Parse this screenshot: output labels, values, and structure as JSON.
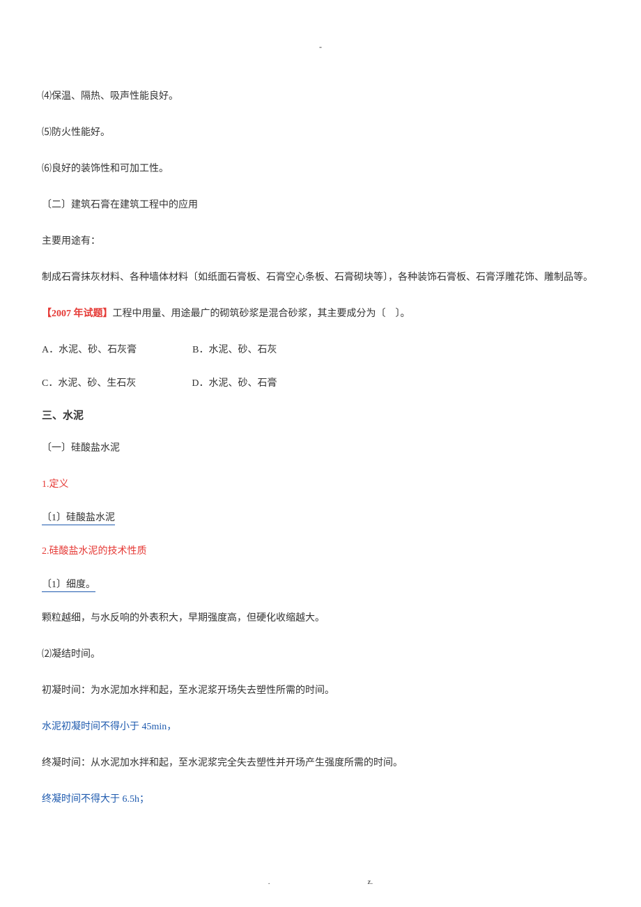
{
  "top": {
    "dash": "-"
  },
  "gypsum": {
    "prop4": "⑷保温、隔热、吸声性能良好。",
    "prop5": "⑸防火性能好。",
    "prop6": "⑹良好的装饰性和可加工性。",
    "sec2_title": "〔二〕建筑石膏在建筑工程中的应用",
    "uses_label": "主要用途有：",
    "uses_text": "制成石膏抹灰材料、各种墙体材料〔如纸面石膏板、石膏空心条板、石膏砌块等〕，各种装饰石膏板、石膏浮雕花饰、雕制品等。"
  },
  "question": {
    "tag": "【2007 年试题】",
    "stem": "工程中用量、用途最广的砌筑砂浆是混合砂浆，其主要成分为〔　〕。",
    "optA": "A．水泥、砂、石灰膏",
    "optB": "B．水泥、砂、石灰",
    "optC": "C．水泥、砂、生石灰",
    "optD": "D．水泥、砂、石膏"
  },
  "cement": {
    "heading": "三、水泥",
    "sec1_title": "〔一〕硅酸盐水泥",
    "def_label": "1.定义",
    "def_item1": "〔1〕硅酸盐水泥",
    "tech_label": "2.硅酸盐水泥的技术性质",
    "tech_item1": "〔1〕细度。",
    "fineness_desc": "颗粒越细，与水反响的外表积大，早期强度高，但硬化收缩越大。",
    "setting_label": "⑵凝结时间。",
    "initial_desc": "初凝时间：为水泥加水拌和起，至水泥浆开场失去塑性所需的时间。",
    "initial_req": "水泥初凝时间不得小于 45min，",
    "final_desc": "终凝时间：从水泥加水拌和起，至水泥浆完全失去塑性并开场产生强度所需的时间。",
    "final_req": "终凝时间不得大于 6.5h；"
  },
  "footer": {
    "left": ".",
    "right": "z."
  }
}
